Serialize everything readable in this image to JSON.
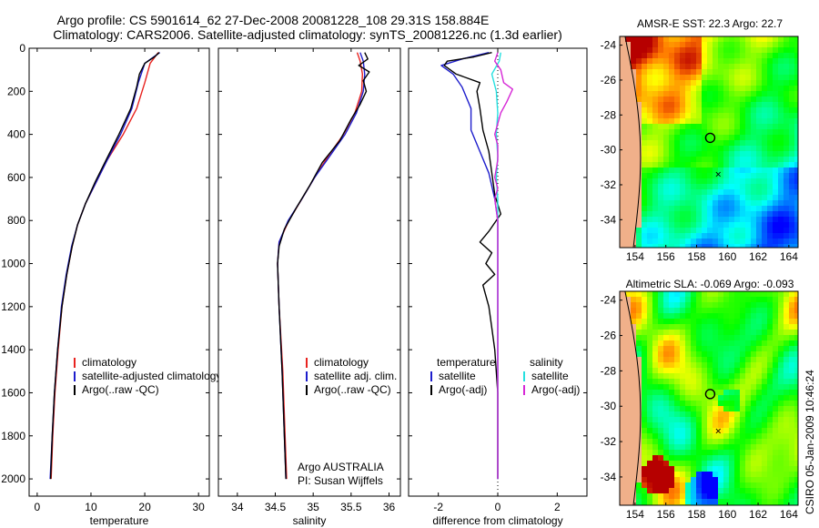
{
  "title_line1": "Argo profile: CS 5901614_62 27-Dec-2008 20081228_108 29.31S 158.884E",
  "title_line2": "Climatology: CARS2006. Satellite-adjusted climatology: synTS_20081226.nc (1.3d earlier)",
  "depth_ticks": [
    0,
    200,
    400,
    600,
    800,
    1000,
    1200,
    1400,
    1600,
    1800,
    2000
  ],
  "depth_range": [
    0,
    2080
  ],
  "colors": {
    "red": "#e8231f",
    "blue": "#1d1dcc",
    "black": "#000000",
    "cyan": "#26e0e0",
    "magenta": "#d628d6"
  },
  "stamp": "CSIRO 05-Jan-2009 10:46:24",
  "chart_data": [
    {
      "type": "line",
      "xlabel": "temperature",
      "xlim": [
        -1.5,
        32
      ],
      "xticks": [
        0,
        10,
        20,
        30
      ],
      "legend": [
        "climatology",
        "satellite-adjusted climatology",
        "Argo(..raw -QC)"
      ],
      "series": [
        {
          "name": "climatology",
          "color": "red",
          "points": [
            [
              22.5,
              20
            ],
            [
              21,
              70
            ],
            [
              20,
              160
            ],
            [
              18.5,
              280
            ],
            [
              16,
              400
            ],
            [
              13,
              520
            ],
            [
              11,
              620
            ],
            [
              9,
              720
            ],
            [
              7.5,
              820
            ],
            [
              6.5,
              920
            ],
            [
              5.5,
              1050
            ],
            [
              4.6,
              1200
            ],
            [
              3.9,
              1400
            ],
            [
              3.3,
              1600
            ],
            [
              2.9,
              1800
            ],
            [
              2.6,
              2000
            ]
          ]
        },
        {
          "name": "satellite-adjusted climatology",
          "color": "blue",
          "points": [
            [
              22.8,
              20
            ],
            [
              20,
              70
            ],
            [
              18.8,
              160
            ],
            [
              17.6,
              280
            ],
            [
              15.5,
              400
            ],
            [
              13,
              520
            ],
            [
              11,
              620
            ],
            [
              9,
              720
            ],
            [
              7.5,
              820
            ],
            [
              6.4,
              920
            ],
            [
              5.4,
              1050
            ],
            [
              4.5,
              1200
            ],
            [
              3.8,
              1400
            ],
            [
              3.2,
              1600
            ],
            [
              2.8,
              1800
            ],
            [
              2.4,
              2000
            ]
          ]
        },
        {
          "name": "Argo(..raw -QC)",
          "color": "black",
          "points": [
            [
              22.7,
              20
            ],
            [
              21.8,
              40
            ],
            [
              20,
              70
            ],
            [
              19,
              120
            ],
            [
              18.5,
              180
            ],
            [
              17.4,
              280
            ],
            [
              15.2,
              400
            ],
            [
              12.8,
              520
            ],
            [
              10.8,
              620
            ],
            [
              9,
              720
            ],
            [
              7.5,
              820
            ],
            [
              6.5,
              920
            ],
            [
              5.5,
              1050
            ],
            [
              4.6,
              1200
            ],
            [
              3.8,
              1400
            ],
            [
              3.2,
              1600
            ],
            [
              2.8,
              1800
            ],
            [
              2.5,
              2000
            ]
          ]
        }
      ]
    },
    {
      "type": "line",
      "xlabel": "salinity",
      "xlim": [
        33.75,
        36.15
      ],
      "xticks": [
        34,
        34.5,
        35,
        35.5,
        36
      ],
      "legend": [
        "climatology",
        "satellite adj. clim.",
        "Argo(..raw -QC)"
      ],
      "annotation": [
        "Argo AUSTRALIA",
        "PI: Susan Wijffels"
      ],
      "series": [
        {
          "name": "climatology",
          "color": "red",
          "points": [
            [
              35.58,
              20
            ],
            [
              35.62,
              60
            ],
            [
              35.65,
              120
            ],
            [
              35.64,
              200
            ],
            [
              35.55,
              300
            ],
            [
              35.4,
              400
            ],
            [
              35.2,
              500
            ],
            [
              35.02,
              600
            ],
            [
              34.85,
              700
            ],
            [
              34.68,
              800
            ],
            [
              34.55,
              900
            ],
            [
              34.53,
              1000
            ],
            [
              34.55,
              1200
            ],
            [
              34.6,
              1500
            ],
            [
              34.63,
              1800
            ],
            [
              34.65,
              2000
            ]
          ]
        },
        {
          "name": "satellite adj. clim.",
          "color": "blue",
          "points": [
            [
              35.62,
              20
            ],
            [
              35.66,
              60
            ],
            [
              35.68,
              120
            ],
            [
              35.66,
              200
            ],
            [
              35.57,
              300
            ],
            [
              35.42,
              400
            ],
            [
              35.22,
              500
            ],
            [
              35.02,
              600
            ],
            [
              34.85,
              700
            ],
            [
              34.67,
              800
            ],
            [
              34.55,
              900
            ],
            [
              34.53,
              1000
            ],
            [
              34.55,
              1200
            ],
            [
              34.59,
              1500
            ],
            [
              34.62,
              1800
            ],
            [
              34.64,
              2000
            ]
          ]
        },
        {
          "name": "Argo(..raw -QC)",
          "color": "black",
          "points": [
            [
              35.68,
              20
            ],
            [
              35.72,
              50
            ],
            [
              35.6,
              80
            ],
            [
              35.74,
              110
            ],
            [
              35.66,
              150
            ],
            [
              35.7,
              200
            ],
            [
              35.62,
              260
            ],
            [
              35.5,
              330
            ],
            [
              35.35,
              430
            ],
            [
              35.12,
              530
            ],
            [
              34.95,
              640
            ],
            [
              34.78,
              740
            ],
            [
              34.62,
              840
            ],
            [
              34.55,
              920
            ],
            [
              34.53,
              1000
            ],
            [
              34.55,
              1200
            ],
            [
              34.59,
              1500
            ],
            [
              34.62,
              1800
            ],
            [
              34.64,
              2000
            ]
          ]
        }
      ]
    },
    {
      "type": "line",
      "xlabel": "difference from climatology",
      "xlim": [
        -3,
        3
      ],
      "xticks": [
        -2,
        0,
        2
      ],
      "legend_temperature_title": "temperature",
      "legend_salinity_title": "salinity",
      "legend": [
        "satellite",
        "Argo(-adj)",
        "satellite",
        "Argo(-adj)"
      ],
      "series": [
        {
          "name": "temperature satellite",
          "color": "blue",
          "points": [
            [
              -0.3,
              20
            ],
            [
              -1.2,
              50
            ],
            [
              -1.9,
              80
            ],
            [
              -1.5,
              120
            ],
            [
              -1.2,
              180
            ],
            [
              -0.9,
              280
            ],
            [
              -0.9,
              380
            ],
            [
              -0.6,
              480
            ],
            [
              -0.3,
              580
            ],
            [
              -0.1,
              700
            ],
            [
              0,
              800
            ],
            [
              0,
              900
            ],
            [
              0,
              1200
            ],
            [
              0,
              1600
            ],
            [
              0,
              2000
            ]
          ]
        },
        {
          "name": "temperature Argo(-adj)",
          "color": "black",
          "points": [
            [
              -0.2,
              20
            ],
            [
              -0.8,
              40
            ],
            [
              -1.7,
              60
            ],
            [
              -1.8,
              80
            ],
            [
              -1.4,
              120
            ],
            [
              -0.6,
              160
            ],
            [
              -0.7,
              200
            ],
            [
              -0.6,
              280
            ],
            [
              -0.5,
              380
            ],
            [
              -0.3,
              480
            ],
            [
              -0.2,
              580
            ],
            [
              -0.1,
              680
            ],
            [
              0.1,
              770
            ],
            [
              -0.3,
              850
            ],
            [
              -0.6,
              900
            ],
            [
              -0.2,
              950
            ],
            [
              -0.4,
              1000
            ],
            [
              -0.1,
              1050
            ],
            [
              -0.5,
              1100
            ],
            [
              -0.3,
              1200
            ],
            [
              -0.2,
              1300
            ],
            [
              -0.1,
              1400
            ],
            [
              0,
              1600
            ],
            [
              0,
              2000
            ]
          ]
        },
        {
          "name": "salinity satellite",
          "color": "cyan",
          "points": [
            [
              0.1,
              20
            ],
            [
              0.05,
              60
            ],
            [
              -0.2,
              120
            ],
            [
              -0.05,
              200
            ],
            [
              0,
              300
            ],
            [
              -0.05,
              400
            ],
            [
              0,
              500
            ],
            [
              -0.05,
              600
            ],
            [
              0,
              700
            ],
            [
              0,
              800
            ],
            [
              0,
              1200
            ],
            [
              0,
              1600
            ],
            [
              0,
              2000
            ]
          ]
        },
        {
          "name": "salinity Argo(-adj)",
          "color": "magenta",
          "points": [
            [
              0,
              20
            ],
            [
              -0.1,
              60
            ],
            [
              0.1,
              100
            ],
            [
              0.2,
              160
            ],
            [
              0.5,
              190
            ],
            [
              0.3,
              250
            ],
            [
              0.1,
              300
            ],
            [
              0,
              350
            ],
            [
              -0.1,
              400
            ],
            [
              0,
              450
            ],
            [
              0,
              520
            ],
            [
              -0.1,
              600
            ],
            [
              0,
              650
            ],
            [
              -0.1,
              700
            ],
            [
              0,
              800
            ],
            [
              0,
              1200
            ],
            [
              0,
              1600
            ],
            [
              0,
              2000
            ]
          ]
        }
      ]
    },
    {
      "type": "heatmap",
      "title": "AMSR-E SST: 22.3 Argo: 22.7",
      "xticks": [
        154,
        156,
        158,
        160,
        162,
        164
      ],
      "yticks": [
        -24,
        -26,
        -28,
        -30,
        -32,
        -34
      ],
      "xlim": [
        153,
        164.6
      ],
      "ylim": [
        -35.6,
        -23.5
      ],
      "float_position": [
        158.884,
        -29.31
      ]
    },
    {
      "type": "heatmap",
      "title": "Altimetric SLA: -0.069 Argo: -0.093",
      "xticks": [
        154,
        156,
        158,
        160,
        162,
        164
      ],
      "yticks": [
        -24,
        -26,
        -28,
        -30,
        -32,
        -34
      ],
      "xlim": [
        153,
        164.6
      ],
      "ylim": [
        -35.6,
        -23.5
      ],
      "float_position": [
        158.884,
        -29.31
      ]
    }
  ]
}
